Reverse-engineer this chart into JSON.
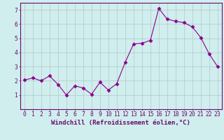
{
  "x": [
    0,
    1,
    2,
    3,
    4,
    5,
    6,
    7,
    8,
    9,
    10,
    11,
    12,
    13,
    14,
    15,
    16,
    17,
    18,
    19,
    20,
    21,
    22,
    23
  ],
  "y": [
    2.05,
    2.2,
    2.0,
    2.35,
    1.75,
    1.0,
    1.65,
    1.5,
    1.05,
    1.9,
    1.35,
    1.8,
    3.3,
    4.6,
    4.65,
    4.85,
    7.1,
    6.35,
    6.2,
    6.1,
    5.8,
    5.05,
    3.9,
    3.0
  ],
  "line_color": "#8B008B",
  "marker": "D",
  "marker_size": 2.5,
  "bg_color": "#d0eeee",
  "grid_color": "#b0c8c8",
  "xlabel": "Windchill (Refroidissement éolien,°C)",
  "ylabel": "",
  "xlim": [
    -0.5,
    23.5
  ],
  "ylim": [
    0,
    7.5
  ],
  "yticks": [
    1,
    2,
    3,
    4,
    5,
    6,
    7
  ],
  "xticks": [
    0,
    1,
    2,
    3,
    4,
    5,
    6,
    7,
    8,
    9,
    10,
    11,
    12,
    13,
    14,
    15,
    16,
    17,
    18,
    19,
    20,
    21,
    22,
    23
  ],
  "spine_color": "#6a0a6a",
  "xlabel_fontsize": 6.5,
  "tick_fontsize": 5.8,
  "tick_color": "#6a0a6a"
}
